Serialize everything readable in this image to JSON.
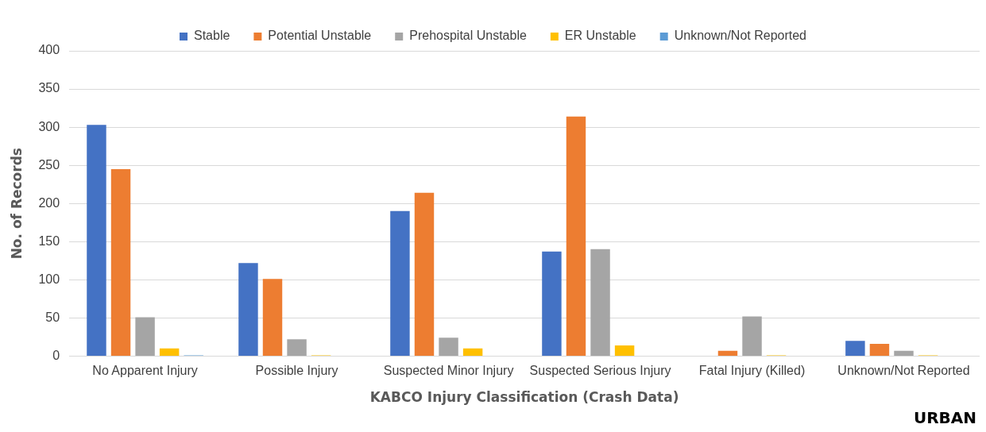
{
  "chart_data": {
    "type": "bar",
    "categories": [
      "No Apparent Injury",
      "Possible Injury",
      "Suspected Minor Injury",
      "Suspected Serious Injury",
      "Fatal Injury (Killed)",
      "Unknown/Not Reported"
    ],
    "series": [
      {
        "name": "Stable",
        "color": "#4472c4",
        "values": [
          303,
          122,
          190,
          137,
          0,
          20
        ]
      },
      {
        "name": "Potential Unstable",
        "color": "#ed7d31",
        "values": [
          245,
          101,
          214,
          314,
          7,
          16
        ]
      },
      {
        "name": "Prehospital Unstable",
        "color": "#a5a5a5",
        "values": [
          51,
          22,
          24,
          140,
          52,
          7
        ]
      },
      {
        "name": "ER Unstable",
        "color": "#ffc000",
        "values": [
          10,
          1,
          10,
          14,
          1,
          1
        ]
      },
      {
        "name": "Unknown/Not Reported",
        "color": "#5b9bd5",
        "values": [
          1,
          0,
          0,
          0,
          0,
          0
        ]
      }
    ],
    "xlabel": "KABCO Injury Classification (Crash Data)",
    "ylabel": "No. of Records",
    "ylim": [
      0,
      400
    ],
    "yticks": [
      0,
      50,
      100,
      150,
      200,
      250,
      300,
      350,
      400
    ],
    "grid": "y",
    "legend": "top",
    "annotations": [
      "URBAN"
    ]
  }
}
